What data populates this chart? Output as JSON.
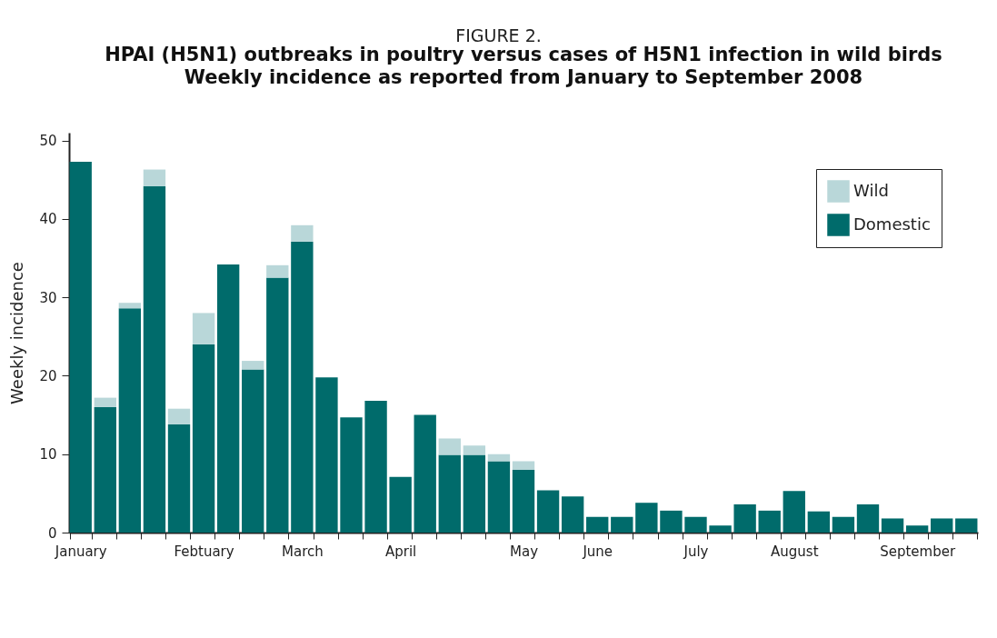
{
  "chart_data": {
    "type": "bar",
    "title": "HPAI (H5N1) outbreaks in poultry versus cases of H5N1 infection in wild birds",
    "subtitle": "Weekly incidence as reported from  January to September 2008",
    "annotations": [
      "FIGURE 2."
    ],
    "ylabel": "Weekly incidence",
    "categories": [
      "January",
      null,
      null,
      null,
      null,
      "Febtuary",
      null,
      null,
      null,
      "March",
      null,
      null,
      null,
      "April",
      null,
      null,
      null,
      null,
      "May",
      null,
      null,
      "June",
      null,
      null,
      null,
      "July",
      null,
      null,
      null,
      "August",
      null,
      null,
      null,
      null,
      "September",
      null,
      null
    ],
    "stacked": true,
    "series": [
      {
        "name": "Domestic",
        "color": "#006b6b",
        "values": [
          47.3,
          16,
          28.6,
          44.2,
          13.8,
          24,
          34.2,
          20.8,
          32.5,
          37.1,
          19.8,
          14.7,
          16.8,
          7.1,
          15,
          9.9,
          9.9,
          9.1,
          8.0,
          5.4,
          4.6,
          2,
          2,
          3.8,
          2.8,
          2,
          0.9,
          3.6,
          2.8,
          5.3,
          2.7,
          2,
          3.6,
          1.8,
          0.9,
          1.8,
          1.8
        ]
      },
      {
        "name": "Wild",
        "color": "#b9d7d9",
        "values": [
          0,
          1.2,
          0.7,
          2.1,
          2.0,
          4,
          0,
          1.1,
          1.6,
          2.1,
          0,
          0,
          0,
          0,
          0,
          2.1,
          1.2,
          0.9,
          1.1,
          0,
          0,
          0,
          0,
          0,
          0,
          0,
          0,
          0,
          0,
          0,
          0,
          0,
          0,
          0,
          0,
          0,
          0
        ]
      }
    ],
    "ylim": [
      0,
      51
    ],
    "yticks": [
      0,
      10,
      20,
      30,
      40,
      50
    ],
    "grid": false,
    "legend": "top right"
  }
}
